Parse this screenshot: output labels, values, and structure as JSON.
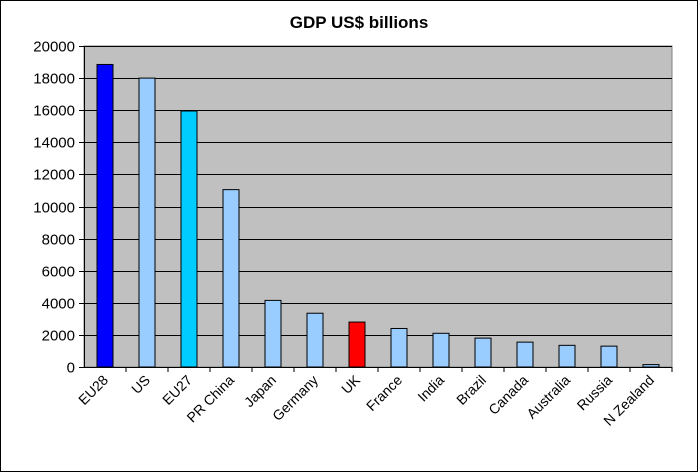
{
  "chart_data": {
    "type": "bar",
    "title": "GDP US$ billions",
    "xlabel": "",
    "ylabel": "",
    "ylim": [
      0,
      20000
    ],
    "yticks": [
      0,
      2000,
      4000,
      6000,
      8000,
      10000,
      12000,
      14000,
      16000,
      18000,
      20000
    ],
    "grid": true,
    "legend": "none",
    "categories": [
      "EU28",
      "US",
      "EU27",
      "PR China",
      "Japan",
      "Germany",
      "UK",
      "France",
      "India",
      "Brazil",
      "Canada",
      "Australia",
      "Russia",
      "N Zealand"
    ],
    "values": [
      18850,
      18000,
      15950,
      11050,
      4150,
      3350,
      2800,
      2400,
      2100,
      1800,
      1550,
      1350,
      1300,
      150
    ],
    "colors": [
      "#0000ff",
      "#99ccff",
      "#00ccff",
      "#99ccff",
      "#99ccff",
      "#99ccff",
      "#ff0000",
      "#99ccff",
      "#99ccff",
      "#99ccff",
      "#99ccff",
      "#99ccff",
      "#99ccff",
      "#99ccff"
    ],
    "plot_background": "#c0c0c0",
    "gridline_color": "#000000"
  }
}
